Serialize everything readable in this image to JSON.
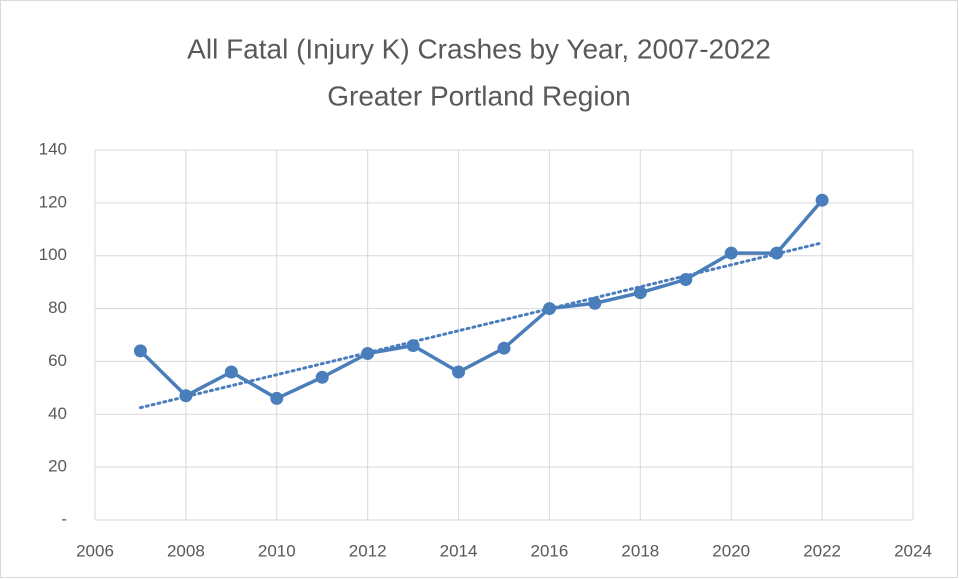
{
  "chart_data": {
    "type": "line",
    "title": "All Fatal (Injury K) Crashes by Year, 2007-2022",
    "subtitle": "Greater Portland Region",
    "x": [
      2007,
      2008,
      2009,
      2010,
      2011,
      2012,
      2013,
      2014,
      2015,
      2016,
      2017,
      2018,
      2019,
      2020,
      2021,
      2022
    ],
    "series": [
      {
        "color": "#4a7ebb",
        "trendline": "linear",
        "values": [
          64,
          47,
          56,
          46,
          54,
          63,
          66,
          56,
          65,
          80,
          82,
          86,
          91,
          101,
          101,
          121
        ]
      }
    ],
    "xlim": [
      2006,
      2024
    ],
    "xticks": [
      2006,
      2008,
      2010,
      2012,
      2014,
      2016,
      2018,
      2020,
      2022,
      2024
    ],
    "ylim": [
      0,
      140
    ],
    "yticks": [
      {
        "value": 0,
        "label": "-"
      },
      20,
      40,
      60,
      80,
      100,
      120,
      140
    ],
    "grid": true
  }
}
